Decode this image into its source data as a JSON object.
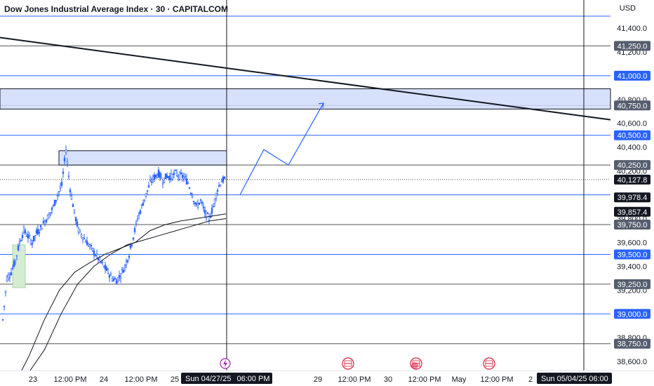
{
  "title": "Dow Jones Industrial Average Index · 30 · CAPITALCOM",
  "currency": "USD",
  "colors": {
    "blue_level": "#2962ff",
    "gray_level": "#555555",
    "zone_fill": "#d1dcfb",
    "zone_stroke": "#131722",
    "green_fill": "#d5ebd2",
    "candle": "#2962ff",
    "badge_dark": "#131722",
    "event_red": "#d61e3a",
    "event_purple": "#9c27b0"
  },
  "time_labels": [
    "23",
    "12:00 PM",
    "24",
    "12:00 PM",
    "25",
    "06:00 PM",
    "29",
    "12:00 PM",
    "30",
    "12:00 PM",
    "May",
    "12:00 PM",
    "2",
    "06:00"
  ],
  "time_badges": [
    {
      "label": "Sun 04/27/25",
      "name": "cursor-date-badge"
    },
    {
      "label": "Sun 05/04/25",
      "name": "end-date-badge"
    }
  ],
  "chart_data": {
    "type": "line",
    "symbol": "Dow Jones Industrial Average Index",
    "timeframe": "30",
    "exchange": "CAPITALCOM",
    "y_axis_ticks": [
      41400,
      41200,
      40800,
      40600,
      40400,
      40200,
      39800,
      39600,
      39400,
      39200,
      38800,
      38600
    ],
    "y_tick_labels": [
      "41,400.0",
      "41,200.0",
      "40,800.0",
      "40,600.0",
      "40,400.0",
      "40,200.0",
      "39,800.0",
      "39,600.0",
      "39,400.0",
      "39,200.0",
      "38,800.0",
      "38,600.0"
    ],
    "horizontal_levels": [
      {
        "value": 41500,
        "label": "",
        "style": "blue"
      },
      {
        "value": 41250,
        "label": "41,250.0",
        "style": "gray"
      },
      {
        "value": 41000,
        "label": "41,000.0",
        "style": "blue"
      },
      {
        "value": 40750,
        "label": "40,750.0",
        "style": "gray"
      },
      {
        "value": 40500,
        "label": "40,500.0",
        "style": "blue"
      },
      {
        "value": 40250,
        "label": "40,250.0",
        "style": "gray"
      },
      {
        "value": 40000,
        "label": "",
        "style": "blue"
      },
      {
        "value": 39750,
        "label": "39,750.0",
        "style": "gray"
      },
      {
        "value": 39500,
        "label": "39,500.0",
        "style": "blue"
      },
      {
        "value": 39250,
        "label": "39,250.0",
        "style": "gray"
      },
      {
        "value": 39000,
        "label": "39,000.0",
        "style": "blue"
      },
      {
        "value": 38750,
        "label": "38,750.0",
        "style": "gray"
      },
      {
        "value": 38500,
        "label": "",
        "style": "blue"
      }
    ],
    "price_badges": [
      {
        "value": 40127.8,
        "label": "40,127.8"
      },
      {
        "value": 39978.4,
        "label": "39,978.4"
      },
      {
        "value": 39857.4,
        "label": "39,857.4"
      }
    ],
    "zones": [
      {
        "from": 40720,
        "to": 40890,
        "start": "04/23 10:00",
        "end": "chart end"
      },
      {
        "from": 40250,
        "to": 40370,
        "start": "04/24 00:00",
        "end": "04/27 18:00"
      }
    ],
    "green_box": {
      "from": 39220,
      "to": 39580
    },
    "trendline": {
      "start": 41320,
      "end": 40630
    },
    "projection_path": [
      40000,
      40380,
      40250,
      40770
    ],
    "price_series": [
      38950,
      39300,
      39350,
      39450,
      39600,
      39700,
      39650,
      39600,
      39680,
      39720,
      39780,
      39830,
      39900,
      40000,
      40080,
      40380,
      40050,
      39850,
      39700,
      39650,
      39600,
      39550,
      39500,
      39450,
      39400,
      39350,
      39300,
      39280,
      39330,
      39400,
      39500,
      39650,
      39800,
      39900,
      40000,
      40100,
      40150,
      40180,
      40120,
      40160,
      40150,
      40180,
      40160,
      40150,
      40100,
      40000,
      39900,
      39950,
      39850,
      39800,
      39900,
      40050,
      40120,
      40130
    ],
    "ma_fast": [
      38400,
      38650,
      38950,
      39200,
      39350,
      39430,
      39500,
      39550,
      39600,
      39700,
      39750,
      39780,
      39800,
      39820,
      39840
    ],
    "ma_slow": [
      38500,
      38700,
      39000,
      39250,
      39400,
      39500,
      39580,
      39620,
      39660,
      39700,
      39740,
      39780,
      39800
    ],
    "ylim": [
      38450,
      41550
    ]
  }
}
